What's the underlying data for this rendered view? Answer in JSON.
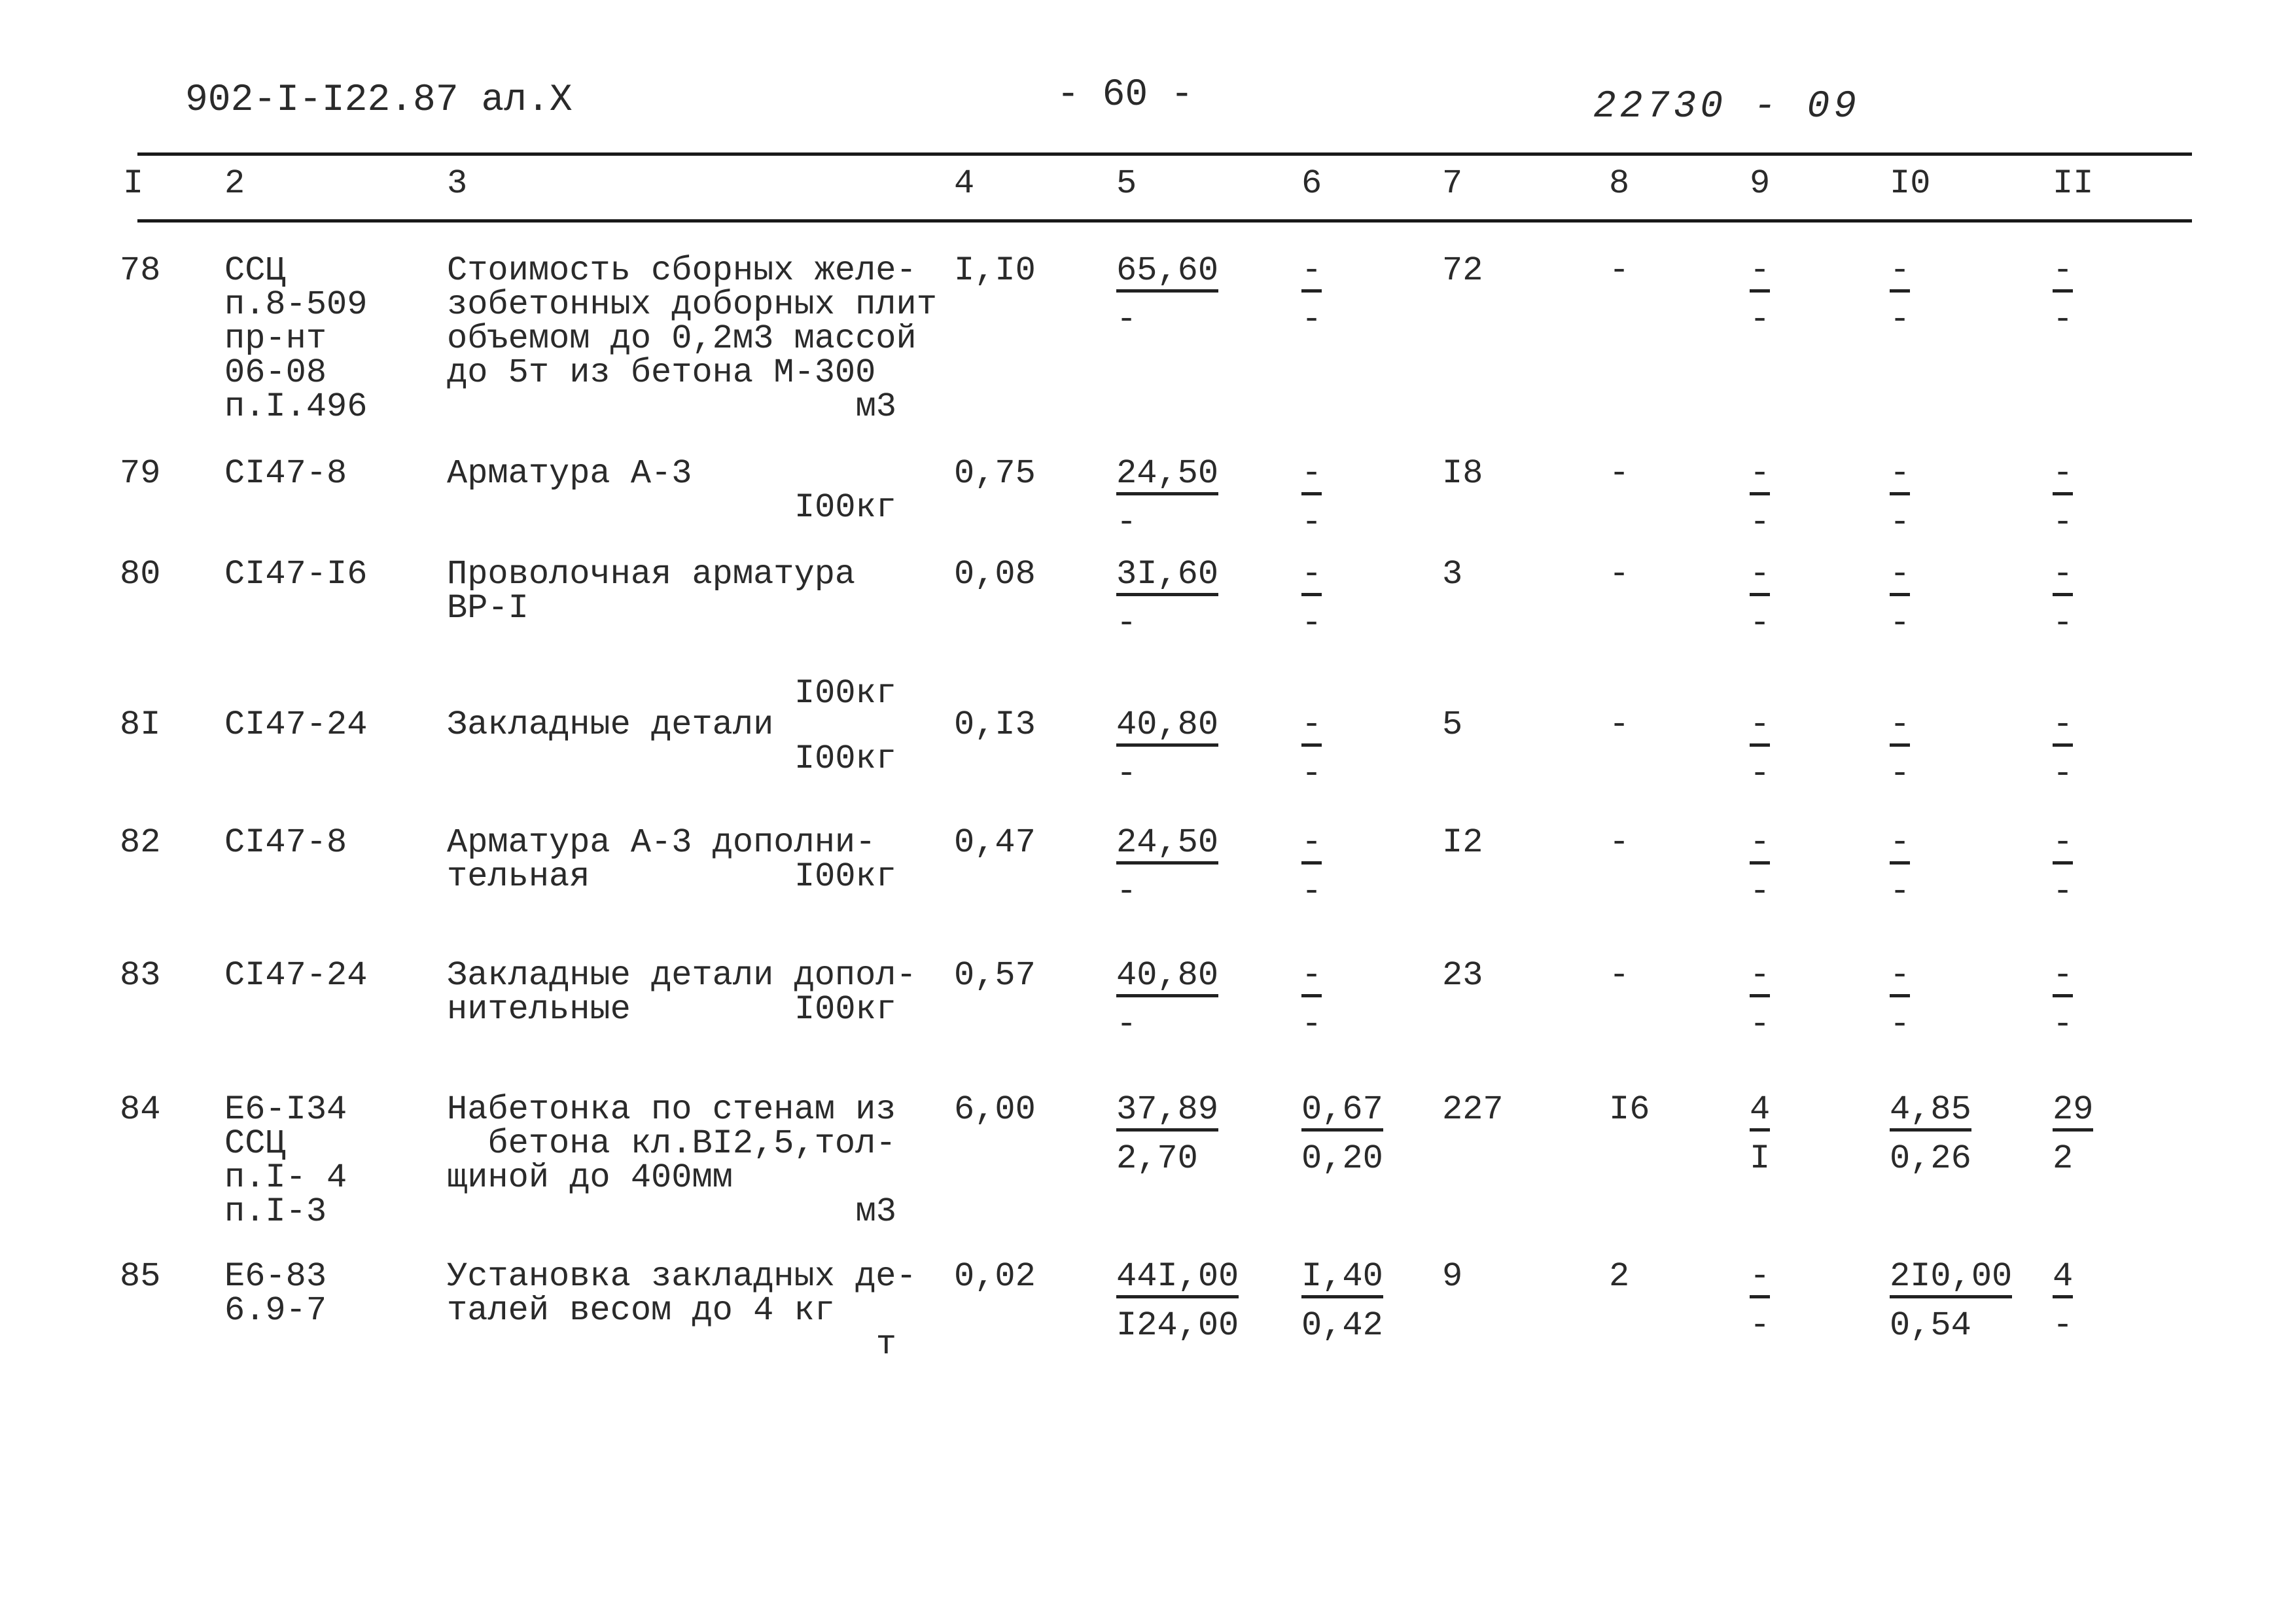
{
  "header": {
    "doc_code": "902-I-I22.87 ал.X",
    "page_number": "- 60 -",
    "doc_number": "22730 - 09"
  },
  "columns": [
    "I",
    "2",
    "3",
    "4",
    "5",
    "6",
    "7",
    "8",
    "9",
    "I0",
    "II"
  ],
  "rows": [
    {
      "num": "78",
      "code": [
        "ССЦ",
        "п.8-509",
        "пр-нт",
        "06-08",
        "п.I.496"
      ],
      "desc": [
        "Стоимость сборных желе-",
        "зобетонных доборных плит",
        "объемом до 0,2м3 массой",
        "до 5т из бетона М-300"
      ],
      "unit": "м3",
      "c4": "I,I0",
      "c5": [
        "65,60",
        "-"
      ],
      "c6": [
        "-",
        "-"
      ],
      "c7": "72",
      "c8": "-",
      "c9": [
        "-",
        "-"
      ],
      "c10": [
        "-",
        "-"
      ],
      "c11": [
        "-",
        "-"
      ]
    },
    {
      "num": "79",
      "code": [
        "СI47-8"
      ],
      "desc": [
        "Арматура А-3"
      ],
      "unit": "I00кг",
      "c4": "0,75",
      "c5": [
        "24,50",
        "-"
      ],
      "c6": [
        "-",
        "-"
      ],
      "c7": "I8",
      "c8": "-",
      "c9": [
        "-",
        "-"
      ],
      "c10": [
        "-",
        "-"
      ],
      "c11": [
        "-",
        "-"
      ]
    },
    {
      "num": "80",
      "code": [
        "СI47-I6"
      ],
      "desc": [
        "Проволочная арматура",
        "ВР-I"
      ],
      "unit": "I00кг",
      "c4": "0,08",
      "c5": [
        "3I,60",
        "-"
      ],
      "c6": [
        "-",
        "-"
      ],
      "c7": "3",
      "c8": "-",
      "c9": [
        "-",
        "-"
      ],
      "c10": [
        "-",
        "-"
      ],
      "c11": [
        "-",
        "-"
      ]
    },
    {
      "num": "8I",
      "code": [
        "СI47-24"
      ],
      "desc": [
        "Закладные детали"
      ],
      "unit": "I00кг",
      "c4": "0,I3",
      "c5": [
        "40,80",
        "-"
      ],
      "c6": [
        "-",
        "-"
      ],
      "c7": "5",
      "c8": "-",
      "c9": [
        "-",
        "-"
      ],
      "c10": [
        "-",
        "-"
      ],
      "c11": [
        "-",
        "-"
      ]
    },
    {
      "num": "82",
      "code": [
        "СI47-8"
      ],
      "desc": [
        "Арматура А-3 дополни-",
        "тельная"
      ],
      "unit": "I00кг",
      "c4": "0,47",
      "c5": [
        "24,50",
        "-"
      ],
      "c6": [
        "-",
        "-"
      ],
      "c7": "I2",
      "c8": "-",
      "c9": [
        "-",
        "-"
      ],
      "c10": [
        "-",
        "-"
      ],
      "c11": [
        "-",
        "-"
      ]
    },
    {
      "num": "83",
      "code": [
        "СI47-24"
      ],
      "desc": [
        "Закладные детали допол-",
        "нительные"
      ],
      "unit": "I00кг",
      "c4": "0,57",
      "c5": [
        "40,80",
        "-"
      ],
      "c6": [
        "-",
        "-"
      ],
      "c7": "23",
      "c8": "-",
      "c9": [
        "-",
        "-"
      ],
      "c10": [
        "-",
        "-"
      ],
      "c11": [
        "-",
        "-"
      ]
    },
    {
      "num": "84",
      "code": [
        "Е6-I34",
        "ССЦ",
        "п.I- 4",
        "п.I-3"
      ],
      "desc": [
        "Набетонка по стенам из",
        "  бетона кл.ВI2,5,тол-",
        "щиной до 400мм"
      ],
      "unit": "м3",
      "c4": "6,00",
      "c5": [
        "37,89",
        "2,70"
      ],
      "c6": [
        "0,67",
        "0,20"
      ],
      "c7": "227",
      "c8": "I6",
      "c9": [
        "4",
        "I"
      ],
      "c10": [
        "4,85",
        "0,26"
      ],
      "c11": [
        "29",
        "2"
      ]
    },
    {
      "num": "85",
      "code": [
        "Е6-83",
        "6.9-7"
      ],
      "desc": [
        "Установка закладных де-",
        "талей весом до 4 кг"
      ],
      "unit": "т",
      "c4": "0,02",
      "c5": [
        "44I,00",
        "I24,00"
      ],
      "c6": [
        "I,40",
        "0,42"
      ],
      "c7": "9",
      "c8": "2",
      "c9": [
        "-",
        "-"
      ],
      "c10": [
        "2I0,00",
        "0,54"
      ],
      "c11": [
        "4",
        "-"
      ]
    }
  ]
}
